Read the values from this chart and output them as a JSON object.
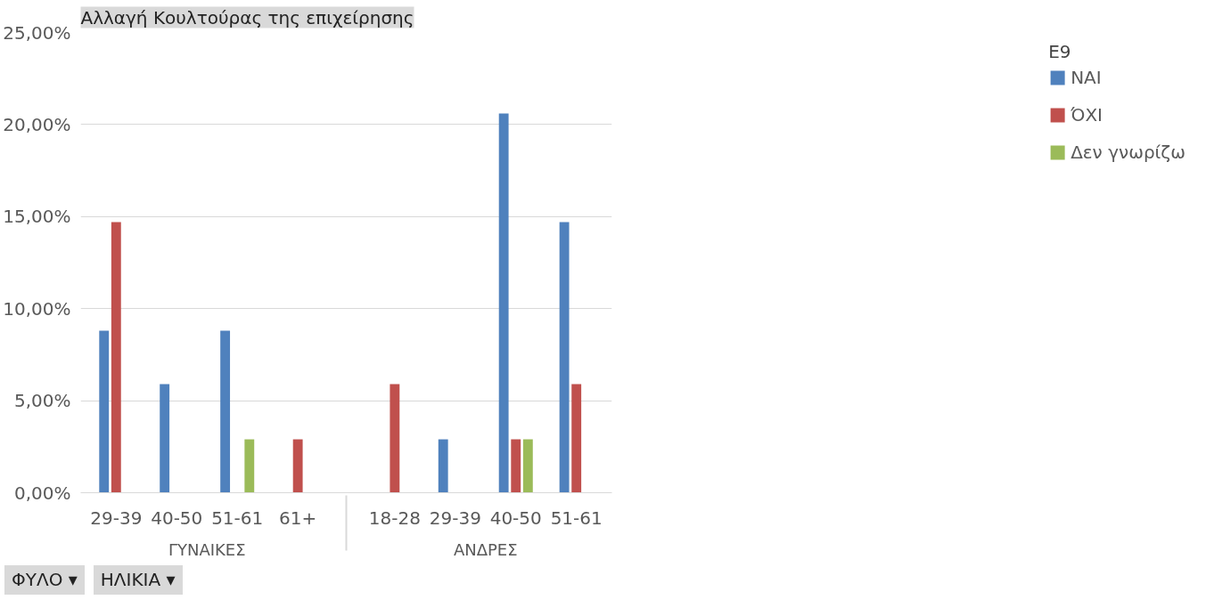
{
  "chart_data": {
    "type": "bar",
    "title": "Αλλαγή Κουλτούρας της επιχείρησης",
    "categories": [
      "29-39",
      "40-50",
      "51-61",
      "61+",
      "18-28",
      "29-39",
      "40-50",
      "51-61"
    ],
    "series": [
      {
        "name": "ΝΑΙ",
        "color": "#4f81bd",
        "values": [
          8.8,
          5.9,
          8.8,
          null,
          null,
          2.9,
          20.6,
          14.7
        ]
      },
      {
        "name": "ΌΧΙ",
        "color": "#c0504d",
        "values": [
          14.7,
          null,
          null,
          2.9,
          5.9,
          null,
          2.9,
          5.9
        ]
      },
      {
        "name": "Δεν γνωρίζω",
        "color": "#9bbb59",
        "values": [
          null,
          null,
          2.9,
          null,
          null,
          null,
          2.9,
          null
        ]
      }
    ],
    "legend_title": "E9",
    "ylim": [
      0,
      25
    ],
    "yticks": [
      {
        "value": 0,
        "label": "0,00%"
      },
      {
        "value": 5,
        "label": "5,00%"
      },
      {
        "value": 10,
        "label": "10,00%"
      },
      {
        "value": 15,
        "label": "15,00%"
      },
      {
        "value": 20,
        "label": "20,00%"
      },
      {
        "value": 25,
        "label": "25,00%"
      }
    ],
    "grid": "y",
    "legend": "right",
    "annotations": [
      "ΓΥΝΑΙΚΕΣ",
      "ΑΝΔΡΕΣ",
      "ΦΥΛΟ ▾",
      "ΗΛΙΚΙΑ ▾"
    ]
  }
}
